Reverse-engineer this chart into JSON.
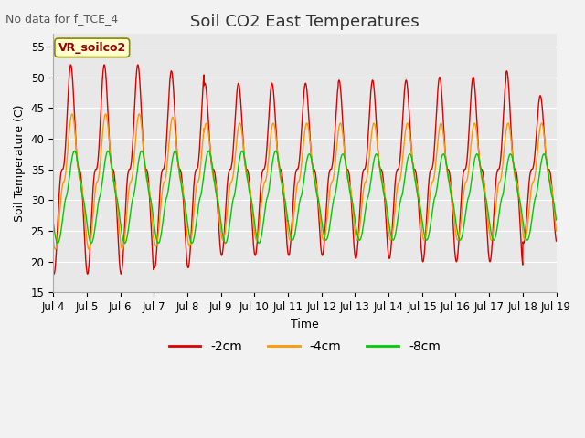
{
  "title": "Soil CO2 East Temperatures",
  "no_data_text": "No data for f_TCE_4",
  "xlabel": "Time",
  "ylabel": "Soil Temperature (C)",
  "ylim": [
    15,
    57
  ],
  "yticks": [
    15,
    20,
    25,
    30,
    35,
    40,
    45,
    50,
    55
  ],
  "xlim_start": 0,
  "xlim_end": 15,
  "xtick_labels": [
    "Jul 4",
    "Jul 5",
    "Jul 6",
    "Jul 7",
    "Jul 8",
    "Jul 9",
    "Jul 10",
    "Jul 11",
    "Jul 12",
    "Jul 13",
    "Jul 14",
    "Jul 15",
    "Jul 16",
    "Jul 17",
    "Jul 18",
    "Jul 19"
  ],
  "legend_box_text": "VR_soilco2",
  "legend_box_color": "#ffffcc",
  "legend_box_edge": "#888800",
  "colors": {
    "2cm": "#dd0000",
    "4cm": "#ff9900",
    "8cm": "#00cc00"
  },
  "line_labels": [
    "-2cm",
    "-4cm",
    "-8cm"
  ],
  "bg_color": "#e8e8e8",
  "fig_bg_color": "#f2f2f2",
  "grid_color": "#ffffff",
  "title_fontsize": 13,
  "label_fontsize": 9,
  "tick_fontsize": 8.5,
  "no_data_fontsize": 9
}
